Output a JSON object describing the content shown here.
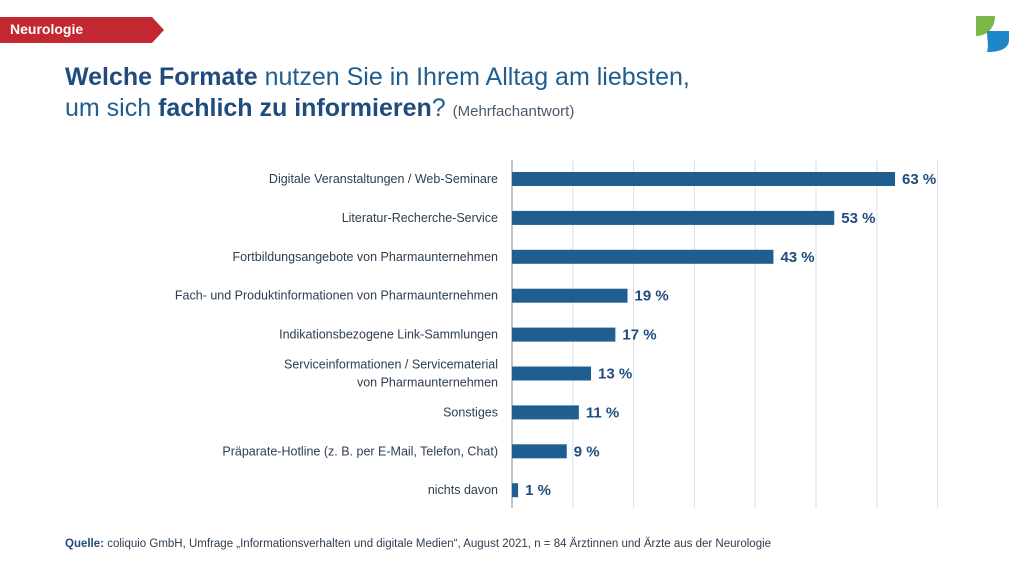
{
  "badge": "Neurologie",
  "title": {
    "bold1": "Welche Formate",
    "text1": " nutzen Sie in Ihrem Alltag am liebsten,",
    "text2": "um sich ",
    "bold2": "fachlich zu informieren",
    "text3": "?",
    "sub": "(Mehrfachantwort)"
  },
  "source": {
    "label": "Quelle:",
    "text": "coliquio GmbH, Umfrage „Informationsverhalten und digitale Medien“, August 2021, n = 84 Ärztinnen und Ärzte aus der Neurologie"
  },
  "colors": {
    "bar": "#1f5e8f",
    "badge": "#c3272f",
    "logo_green": "#7ab648",
    "logo_blue": "#1f87c7"
  },
  "chart_data": {
    "type": "bar",
    "orientation": "horizontal",
    "categories": [
      [
        "Digitale Veranstaltungen / Web-Seminare"
      ],
      [
        "Literatur-Recherche-Service"
      ],
      [
        "Fortbildungsangebote von Pharmaunternehmen"
      ],
      [
        "Fach- und Produktinformationen von Pharmaunternehmen"
      ],
      [
        "Indikationsbezogene Link-Sammlungen"
      ],
      [
        "Serviceinformationen / Servicematerial",
        "von Pharmaunternehmen"
      ],
      [
        "Sonstiges"
      ],
      [
        "Präparate-Hotline (z. B. per E-Mail, Telefon, Chat)"
      ],
      [
        "nichts davon"
      ]
    ],
    "values": [
      63,
      53,
      43,
      19,
      17,
      13,
      11,
      9,
      1
    ],
    "value_labels": [
      "63 %",
      "53 %",
      "43 %",
      "19 %",
      "17 %",
      "13 %",
      "11 %",
      "9 %",
      "1 %"
    ],
    "unit": "%",
    "xlim": [
      0,
      70
    ],
    "grid": true
  }
}
